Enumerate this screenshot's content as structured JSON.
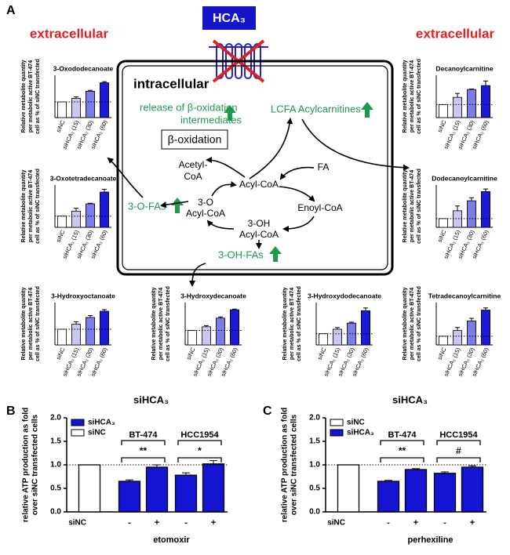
{
  "panel_labels": [
    "A",
    "B",
    "C"
  ],
  "diagram": {
    "receptor": "HCA₃",
    "extracellular_left": "extracellular",
    "extracellular_right": "extracellular",
    "intracellular": "intracellular",
    "release": [
      "release of β-oxidation",
      "intermediates"
    ],
    "lcfa": "LCFA Acylcarnitines",
    "beta_oxidation": "β-oxidation",
    "acetyl_coa": [
      "Acetyl-",
      "CoA"
    ],
    "acyl_coa": "Acyl-CoA",
    "fa": "FA",
    "three_o_acyl_coa": [
      "3-O",
      "Acyl-CoA"
    ],
    "enoyl_coa": "Enoyl-CoA",
    "three_oh_acyl_coa": [
      "3-OH",
      "Acyl-CoA"
    ],
    "three_o_fas": "3-O-FAs",
    "three_oh_fas": "3-OH-FAs"
  },
  "chart_data": [
    {
      "type": "small-bar",
      "title": "3-Oxododecanoate",
      "y_label": [
        "Relative metabolite quantity",
        "per metabolic active BT-474",
        "cell as % of siNC transfected"
      ],
      "categories": [
        "siNC",
        "siHCA₃ (15)",
        "siHCA₃ (30)",
        "siHCA₃ (60)"
      ],
      "values": [
        100,
        122,
        168,
        222
      ],
      "errors": [
        null,
        10,
        6,
        7
      ],
      "colors": [
        "#ffffff",
        "#c8c8f2",
        "#7b7bea",
        "#1a1ad8"
      ],
      "ylim": [
        0,
        250
      ],
      "reference_line": 100
    },
    {
      "type": "small-bar",
      "title": "3-Oxotetradecanoate",
      "y_label": [
        "Relative metabolite quantity",
        "per metabolic active BT-474",
        "cell as % of siNC transfected"
      ],
      "categories": [
        "siNC",
        "siHCA₃ (15)",
        "siHCA₃ (30)",
        "siHCA₃ (60)"
      ],
      "values": [
        100,
        145,
        210,
        315
      ],
      "errors": [
        null,
        25,
        5,
        25
      ],
      "colors": [
        "#ffffff",
        "#c8c8f2",
        "#7b7bea",
        "#1a1ad8"
      ],
      "ylim": [
        0,
        350
      ],
      "reference_line": 100
    },
    {
      "type": "small-bar",
      "title": "3-Hydroxyoctanoate",
      "y_label": [
        "Relative metabolite quantity",
        "per metabolic active BT-474",
        "cell as % of siNC transfected"
      ],
      "categories": [
        "siNC",
        "siHCA₃ (15)",
        "siHCA₃ (30)",
        "siHCA₃ (60)"
      ],
      "values": [
        100,
        132,
        175,
        215
      ],
      "errors": [
        null,
        15,
        12,
        10
      ],
      "colors": [
        "#ffffff",
        "#c8c8f2",
        "#7b7bea",
        "#1a1ad8"
      ],
      "ylim": [
        0,
        250
      ],
      "reference_line": 100
    },
    {
      "type": "small-bar",
      "title": "3-Hydroxydecanoate",
      "y_label": [
        "Relative metabolite quantity",
        "per metabolic active BT-474",
        "cell as % of siNC transfected"
      ],
      "categories": [
        "siNC",
        "siHCA₃ (15)",
        "siHCA₃ (30)",
        "siHCA₃ (60)"
      ],
      "values": [
        100,
        125,
        185,
        242
      ],
      "errors": [
        null,
        8,
        8,
        5
      ],
      "colors": [
        "#ffffff",
        "#c8c8f2",
        "#7b7bea",
        "#1a1ad8"
      ],
      "ylim": [
        0,
        270
      ],
      "reference_line": 100
    },
    {
      "type": "small-bar",
      "title": "3-Hydroxydodecanoate",
      "y_label": [
        "Relative metabolite quantity",
        "per metabolic active BT-474",
        "cell as % of siNC transfected"
      ],
      "categories": [
        "siNC",
        "siHCA₃ (15)",
        "siHCA₃ (30)",
        "siHCA₃ (60)"
      ],
      "values": [
        100,
        140,
        195,
        305
      ],
      "errors": [
        null,
        15,
        8,
        25
      ],
      "colors": [
        "#ffffff",
        "#c8c8f2",
        "#7b7bea",
        "#1a1ad8"
      ],
      "ylim": [
        0,
        350
      ],
      "reference_line": 100
    },
    {
      "type": "small-bar",
      "title": "Tetradecanoylcarnitine",
      "y_label": [
        "Relative metabolite quantity",
        "per metabolic active BT-474",
        "cell as % of siNC transfected"
      ],
      "categories": [
        "siNC",
        "siHCA₃ (15)",
        "siHCA₃ (30)",
        "siHCA₃ (60)"
      ],
      "values": [
        100,
        165,
        275,
        400
      ],
      "errors": [
        null,
        35,
        30,
        25
      ],
      "colors": [
        "#ffffff",
        "#c8c8f2",
        "#7b7bea",
        "#1a1ad8"
      ],
      "ylim": [
        0,
        450
      ],
      "reference_line": 100
    },
    {
      "type": "small-bar",
      "title": "Decanoylcarnitine",
      "y_label": [
        "Relative metabolite quantity",
        "per metabolic active BT-474",
        "cell as % of siNC transfected"
      ],
      "categories": [
        "siNC",
        "siHCA₃ (15)",
        "siHCA₃ (30)",
        "siHCA₃ (60)"
      ],
      "values": [
        100,
        155,
        215,
        245
      ],
      "errors": [
        null,
        30,
        3,
        35
      ],
      "colors": [
        "#ffffff",
        "#c8c8f2",
        "#7b7bea",
        "#1a1ad8"
      ],
      "ylim": [
        0,
        300
      ],
      "reference_line": 100
    },
    {
      "type": "small-bar",
      "title": "Dodecanoylcarnitine",
      "y_label": [
        "Relative metabolite quantity",
        "per metabolic active BT-474",
        "cell as % of siNC transfected"
      ],
      "categories": [
        "siNC",
        "siHCA₃ (15)",
        "siHCA₃ (30)",
        "siHCA₃ (60)"
      ],
      "values": [
        100,
        190,
        305,
        410
      ],
      "errors": [
        null,
        55,
        35,
        30
      ],
      "colors": [
        "#ffffff",
        "#c8c8f2",
        "#7b7bea",
        "#1a1ad8"
      ],
      "ylim": [
        0,
        450
      ],
      "reference_line": 100
    },
    {
      "type": "bar",
      "title": "siHCA₃",
      "y_label": [
        "relative ATP production as fold",
        "over siNC transfected cells"
      ],
      "x_label": "etomoxir",
      "row_label": "siNC",
      "categories": [
        null,
        "-",
        "+",
        "-",
        "+"
      ],
      "series": [
        {
          "name": "siHCA₃",
          "color": "#1414d2",
          "values": [
            null,
            0.65,
            0.95,
            0.78,
            1.02
          ],
          "errors": [
            null,
            0.03,
            0.05,
            0.05,
            0.07
          ]
        },
        {
          "name": "siNC",
          "color": "#ffffff",
          "values": [
            1.0,
            null,
            null,
            null,
            null
          ],
          "errors": [
            null,
            null,
            null,
            null,
            null
          ]
        }
      ],
      "groups": [
        {
          "label": "BT-474",
          "significance": "**"
        },
        {
          "label": "HCC1954",
          "significance": "*"
        }
      ],
      "ylim": [
        0,
        2.0
      ],
      "yticks": [
        {
          "value": 0,
          "label": "0.0"
        },
        {
          "value": 0.5,
          "label": "0.5"
        },
        {
          "value": 1.0,
          "label": "1.0"
        },
        {
          "value": 1.5,
          "label": "1.5"
        },
        {
          "value": 2.0,
          "label": "2.0"
        }
      ],
      "reference_line": 1,
      "legend": "upper left"
    },
    {
      "type": "bar",
      "title": "siHCA₃",
      "y_label": [
        "relative ATP production as fold",
        "over siNC transfected cells"
      ],
      "x_label": "perhexiline",
      "row_label": "siNC",
      "categories": [
        null,
        "-",
        "+",
        "-",
        "+"
      ],
      "series": [
        {
          "name": "siNC",
          "color": "#ffffff",
          "values": [
            1.0,
            null,
            null,
            null,
            null
          ],
          "errors": [
            null,
            null,
            null,
            null,
            null
          ]
        },
        {
          "name": "siHCA₃",
          "color": "#1414d2",
          "values": [
            null,
            0.65,
            0.9,
            0.82,
            0.95
          ],
          "errors": [
            null,
            0.02,
            0.02,
            0.03,
            0.03
          ]
        }
      ],
      "groups": [
        {
          "label": "BT-474",
          "significance": "**"
        },
        {
          "label": "HCC1954",
          "significance": "#"
        }
      ],
      "ylim": [
        0,
        2.0
      ],
      "yticks": [
        {
          "value": 0,
          "label": "0.0"
        },
        {
          "value": 0.5,
          "label": "0.5"
        },
        {
          "value": 1.0,
          "label": "1.0"
        },
        {
          "value": 1.5,
          "label": "1.5"
        },
        {
          "value": 2.0,
          "label": "2.0"
        }
      ],
      "reference_line": 1,
      "legend": "upper left"
    }
  ]
}
